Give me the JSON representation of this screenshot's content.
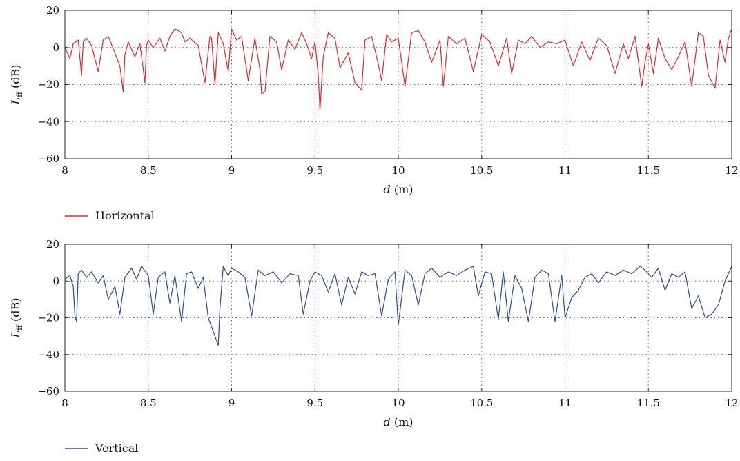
{
  "chart_data": [
    {
      "type": "line",
      "xlabel_var": "d",
      "xlabel_unit": "(m)",
      "ylabel_var": "L",
      "ylabel_sub": "ff",
      "ylabel_unit": "(dB)",
      "xlim": [
        8,
        12
      ],
      "ylim": [
        -60,
        20
      ],
      "xticks": [
        "8",
        "8.5",
        "9",
        "9.5",
        "10",
        "10.5",
        "11",
        "11.5",
        "12"
      ],
      "xtick_values": [
        8,
        8.5,
        9,
        9.5,
        10,
        10.5,
        11,
        11.5,
        12
      ],
      "yticks": [
        "20",
        "0",
        "−20",
        "−40",
        "−60"
      ],
      "ytick_values": [
        20,
        0,
        -20,
        -40,
        -60
      ],
      "grid": true,
      "legend_position": "below-left",
      "series": [
        {
          "name": "Horizontal",
          "color": "#e8232a",
          "x": [
            8.0,
            8.03,
            8.05,
            8.08,
            8.1,
            8.11,
            8.13,
            8.16,
            8.2,
            8.23,
            8.26,
            8.3,
            8.33,
            8.35,
            8.36,
            8.38,
            8.42,
            8.45,
            8.48,
            8.49,
            8.5,
            8.53,
            8.57,
            8.6,
            8.63,
            8.66,
            8.7,
            8.72,
            8.75,
            8.8,
            8.84,
            8.87,
            8.88,
            8.9,
            8.92,
            8.95,
            8.98,
            9.0,
            9.03,
            9.06,
            9.1,
            9.14,
            9.17,
            9.18,
            9.2,
            9.23,
            9.27,
            9.3,
            9.34,
            9.38,
            9.42,
            9.45,
            9.48,
            9.5,
            9.52,
            9.53,
            9.55,
            9.58,
            9.62,
            9.65,
            9.7,
            9.74,
            9.78,
            9.8,
            9.84,
            9.88,
            9.9,
            9.93,
            9.96,
            10.0,
            10.04,
            10.08,
            10.12,
            10.16,
            10.2,
            10.25,
            10.27,
            10.3,
            10.35,
            10.4,
            10.45,
            10.5,
            10.55,
            10.6,
            10.65,
            10.68,
            10.72,
            10.76,
            10.8,
            10.85,
            10.9,
            10.95,
            11.0,
            11.05,
            11.1,
            11.15,
            11.2,
            11.25,
            11.3,
            11.35,
            11.38,
            11.42,
            11.46,
            11.48,
            11.5,
            11.53,
            11.56,
            11.6,
            11.64,
            11.68,
            11.72,
            11.76,
            11.8,
            11.83,
            11.86,
            11.9,
            11.93,
            11.96,
            11.98,
            12.0
          ],
          "y": [
            0,
            -6,
            2,
            4,
            -15,
            3,
            5,
            1,
            -13,
            4,
            6,
            -3,
            -10,
            -24,
            -4,
            3,
            -5,
            2,
            -19,
            1,
            4,
            0,
            5,
            -2,
            6,
            10,
            8,
            3,
            5,
            1,
            -19,
            6,
            5,
            -20,
            8,
            2,
            -13,
            10,
            4,
            6,
            -18,
            5,
            -12,
            -25,
            -24,
            6,
            3,
            -12,
            4,
            -1,
            8,
            2,
            -6,
            3,
            -15,
            -34,
            -5,
            8,
            5,
            -11,
            -3,
            -19,
            -23,
            4,
            6,
            -9,
            -18,
            7,
            3,
            5,
            -21,
            8,
            9,
            3,
            -8,
            4,
            -21,
            6,
            2,
            5,
            -13,
            7,
            3,
            -10,
            5,
            -14,
            4,
            2,
            6,
            0,
            3,
            2,
            4,
            -10,
            3,
            -7,
            5,
            1,
            -14,
            2,
            -6,
            6,
            -21,
            -8,
            2,
            -14,
            5,
            -6,
            -12,
            -5,
            3,
            -21,
            8,
            6,
            -15,
            -22,
            4,
            -8,
            5,
            10
          ]
        }
      ]
    },
    {
      "type": "line",
      "xlabel_var": "d",
      "xlabel_unit": "(m)",
      "ylabel_var": "L",
      "ylabel_sub": "ff",
      "ylabel_unit": "(dB)",
      "xlim": [
        8,
        12
      ],
      "ylim": [
        -60,
        20
      ],
      "xticks": [
        "8",
        "8.5",
        "9",
        "9.5",
        "10",
        "10.5",
        "11",
        "11.5",
        "12"
      ],
      "xtick_values": [
        8,
        8.5,
        9,
        9.5,
        10,
        10.5,
        11,
        11.5,
        12
      ],
      "yticks": [
        "20",
        "0",
        "−20",
        "−40",
        "−60"
      ],
      "ytick_values": [
        20,
        0,
        -20,
        -40,
        -60
      ],
      "grid": true,
      "legend_position": "below-left",
      "series": [
        {
          "name": "Vertical",
          "color": "#2a4a9a",
          "x": [
            8.0,
            8.03,
            8.05,
            8.06,
            8.07,
            8.08,
            8.1,
            8.13,
            8.16,
            8.2,
            8.23,
            8.26,
            8.3,
            8.33,
            8.36,
            8.4,
            8.43,
            8.46,
            8.5,
            8.53,
            8.56,
            8.6,
            8.63,
            8.66,
            8.7,
            8.73,
            8.76,
            8.8,
            8.83,
            8.86,
            8.9,
            8.92,
            8.93,
            8.95,
            8.98,
            9.0,
            9.04,
            9.08,
            9.12,
            9.16,
            9.2,
            9.25,
            9.3,
            9.35,
            9.4,
            9.43,
            9.47,
            9.5,
            9.54,
            9.58,
            9.62,
            9.66,
            9.7,
            9.74,
            9.78,
            9.82,
            9.86,
            9.9,
            9.94,
            9.98,
            10.0,
            10.04,
            10.08,
            10.12,
            10.16,
            10.2,
            10.25,
            10.3,
            10.35,
            10.4,
            10.45,
            10.48,
            10.52,
            10.56,
            10.6,
            10.63,
            10.66,
            10.7,
            10.74,
            10.78,
            10.82,
            10.86,
            10.9,
            10.94,
            10.98,
            11.0,
            11.04,
            11.08,
            11.12,
            11.16,
            11.2,
            11.25,
            11.3,
            11.35,
            11.4,
            11.45,
            11.48,
            11.52,
            11.56,
            11.6,
            11.64,
            11.68,
            11.72,
            11.76,
            11.8,
            11.84,
            11.88,
            11.92,
            11.96,
            12.0
          ],
          "y": [
            1,
            3,
            -3,
            -19,
            -22,
            4,
            6,
            2,
            5,
            -1,
            3,
            -10,
            -3,
            -18,
            2,
            7,
            1,
            8,
            3,
            -18,
            2,
            5,
            -12,
            3,
            -22,
            4,
            5,
            -4,
            2,
            -20,
            -30,
            -35,
            -15,
            8,
            3,
            7,
            5,
            2,
            -19,
            6,
            3,
            5,
            -1,
            4,
            3,
            -18,
            0,
            5,
            3,
            -6,
            4,
            -13,
            2,
            -7,
            5,
            3,
            4,
            -19,
            1,
            5,
            -24,
            6,
            3,
            -13,
            4,
            7,
            2,
            5,
            3,
            6,
            8,
            -8,
            5,
            4,
            -21,
            5,
            -22,
            3,
            -4,
            -22,
            2,
            6,
            4,
            -22,
            3,
            -20,
            -9,
            -5,
            2,
            4,
            -1,
            5,
            3,
            6,
            4,
            8,
            6,
            2,
            7,
            -5,
            4,
            2,
            5,
            -15,
            -8,
            -20,
            -18,
            -13,
            0,
            8
          ]
        }
      ]
    }
  ]
}
